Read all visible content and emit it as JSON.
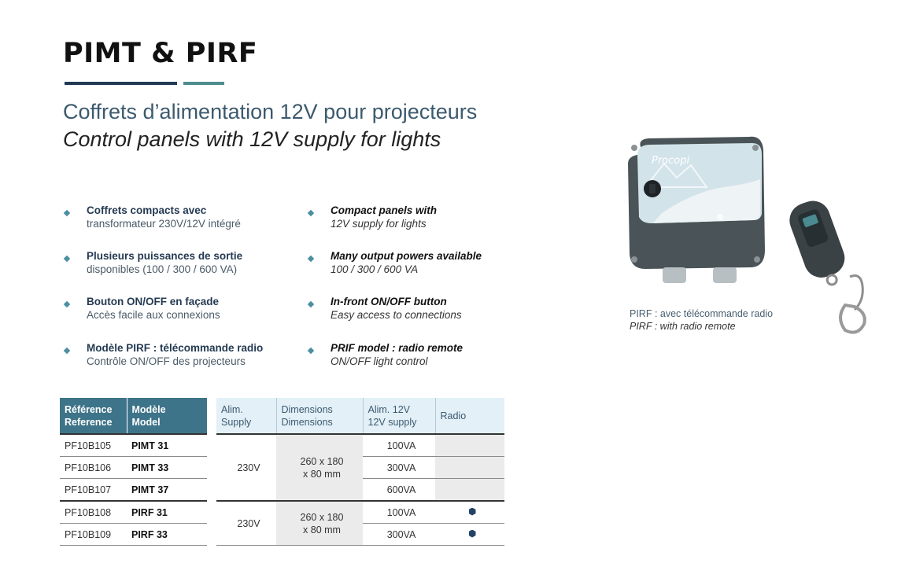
{
  "title": "PIMT & PIRF",
  "subtitle_fr": "Coffrets d’alimentation 12V pour projecteurs",
  "subtitle_en": "Control panels with 12V supply for lights",
  "features_fr": [
    {
      "title": "Coffrets compacts avec",
      "desc": "transformateur 230V/12V intégré"
    },
    {
      "title": "Plusieurs puissances de sortie",
      "desc": "disponibles (100 / 300 / 600 VA)"
    },
    {
      "title": "Bouton ON/OFF en façade",
      "desc": "Accès facile aux connexions"
    },
    {
      "title": "Modèle PIRF : télécommande radio",
      "desc": "Contrôle ON/OFF des projecteurs"
    }
  ],
  "features_en": [
    {
      "title": "Compact panels with",
      "desc": "12V supply for lights"
    },
    {
      "title": "Many output powers available",
      "desc": "100 / 300 / 600 VA"
    },
    {
      "title": "In-front ON/OFF button",
      "desc": "Easy access to connections"
    },
    {
      "title": "PRIF model : radio remote",
      "desc": "ON/OFF light control"
    }
  ],
  "table": {
    "headers": {
      "ref": [
        "Référence",
        "Reference"
      ],
      "model": [
        "Modèle",
        "Model"
      ],
      "supply": [
        "Alim.",
        "Supply"
      ],
      "dims": [
        "Dimensions",
        "Dimensions"
      ],
      "out": [
        "Alim. 12V",
        "12V supply"
      ],
      "radio": "Radio"
    },
    "rows": [
      {
        "ref": "PF10B105",
        "model": "PIMT 31",
        "power": "100VA"
      },
      {
        "ref": "PF10B106",
        "model": "PIMT 33",
        "power": "300VA"
      },
      {
        "ref": "PF10B107",
        "model": "PIMT 37",
        "power": "600VA"
      },
      {
        "ref": "PF10B108",
        "model": "PIRF 31",
        "power": "100VA"
      },
      {
        "ref": "PF10B109",
        "model": "PIRF 33",
        "power": "300VA"
      }
    ],
    "group1": {
      "supply": "230V",
      "dims_1": "260 x 180",
      "dims_2": "x 80 mm"
    },
    "group2": {
      "supply": "230V",
      "dims_1": "260 x 180",
      "dims_2": "x 80 mm"
    },
    "radio_icon": "hexagon-dot-icon"
  },
  "product_image": {
    "panel_logo_text": "Procopi",
    "caption_fr": "PIRF : avec télécommande radio",
    "caption_en": "PIRF : with radio remote"
  },
  "colors": {
    "dark_blue": "#233a56",
    "teal": "#4f8d8f",
    "header_dark": "#3e7489",
    "header_light": "#e3f0f8",
    "bullet": "#4d8fa1"
  }
}
